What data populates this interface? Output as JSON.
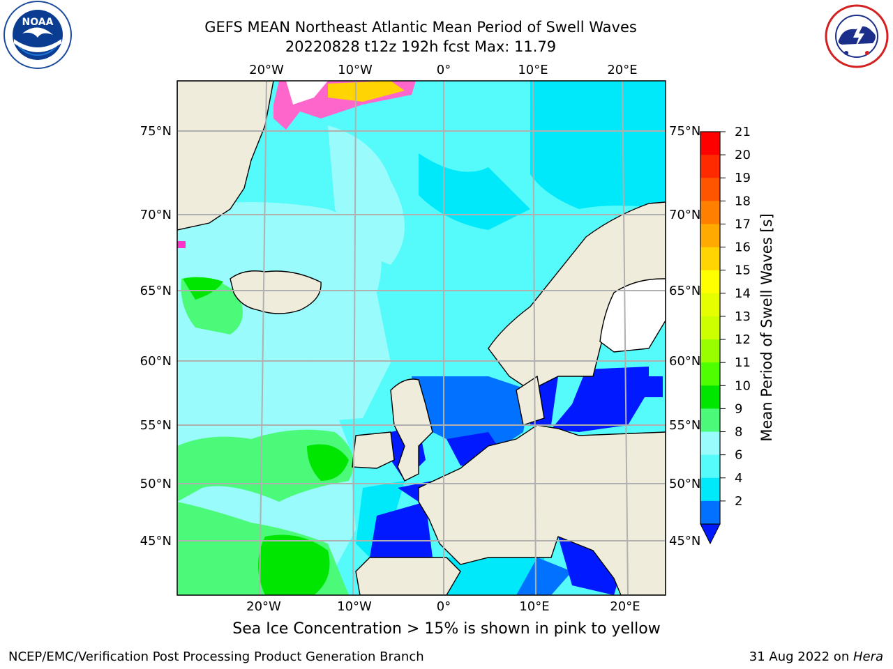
{
  "header": {
    "title_line1": "GEFS MEAN Northeast Atlantic Mean Period of Swell Waves",
    "title_line2": "20220828 t12z 192h fcst   Max: 11.79"
  },
  "logos": {
    "left": {
      "name": "NOAA",
      "text": "NOAA",
      "ring_text": "NATIONAL OCEANIC AND ATMOSPHERIC ADMINISTRATION · U.S. DEPARTMENT OF COMMERCE"
    },
    "right": {
      "name": "National Weather Service",
      "ring_text": "NATIONAL WEATHER SERVICE"
    }
  },
  "map": {
    "lon_labels": [
      "20°W",
      "10°W",
      "0°",
      "10°E",
      "20°E"
    ],
    "lat_labels": [
      "75°N",
      "70°N",
      "65°N",
      "60°N",
      "55°N",
      "50°N",
      "45°N"
    ],
    "colors": {
      "land": "#efecdc",
      "grid": "#b0b0b0",
      "ocean_light": "#99fbfb",
      "ocean_cyan": "#00e9fb",
      "ocean_blue": "#0072ff",
      "ocean_deep": "#0019ff",
      "green": "#00d200",
      "light_green": "#4dfc72"
    }
  },
  "colorbar": {
    "label": "Mean Period of Swell Waves [s]",
    "ticks": [
      "21",
      "20",
      "19",
      "18",
      "17",
      "16",
      "15",
      "14",
      "13",
      "12",
      "11",
      "10",
      "9",
      "8",
      "6",
      "4",
      "2"
    ],
    "colors_top_to_bottom": [
      "#ff0000",
      "#ff2a00",
      "#ff5500",
      "#ff8000",
      "#ffaa00",
      "#ffd400",
      "#ffff00",
      "#e6ff00",
      "#ccff00",
      "#99ff00",
      "#4dff00",
      "#00e600",
      "#4cfa7a",
      "#99fbfb",
      "#55fbfb",
      "#00e9fb",
      "#0072ff"
    ],
    "extend_color": "#0019ff"
  },
  "footer": {
    "note": "Sea Ice Concentration > 15% is shown in pink to yellow",
    "left": "NCEP/EMC/Verification Post Processing Product Generation Branch",
    "right_date": "31 Aug 2022 on ",
    "right_host": "Hera"
  }
}
